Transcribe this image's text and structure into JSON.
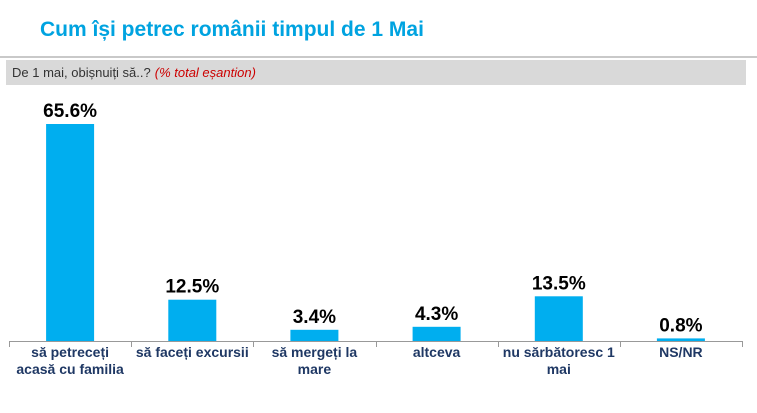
{
  "title": "Cum își petrec românii timpul de 1 Mai",
  "question": {
    "text": "De 1 mai, obișnuiți să..?",
    "note": "(% total eșantion)"
  },
  "colors": {
    "title": "#00a3e0",
    "bar": "#00aeef",
    "axis": "#999999",
    "category_text": "#1f3864",
    "value_text": "#000000"
  },
  "chart_data": {
    "type": "bar",
    "title": "",
    "xlabel": "",
    "ylabel": "",
    "ylim": [
      0,
      65.6
    ],
    "grid": false,
    "legend": "none",
    "categories": [
      "să petreceți acasă cu familia",
      "să faceți excursii",
      "să mergeți la mare",
      "altceva",
      "nu sărbătoresc 1 mai",
      "NS/NR"
    ],
    "values": [
      65.6,
      12.5,
      3.4,
      4.3,
      13.5,
      0.8
    ],
    "data_labels": [
      "65.6%",
      "12.5%",
      "3.4%",
      "4.3%",
      "13.5%",
      "0.8%"
    ]
  }
}
